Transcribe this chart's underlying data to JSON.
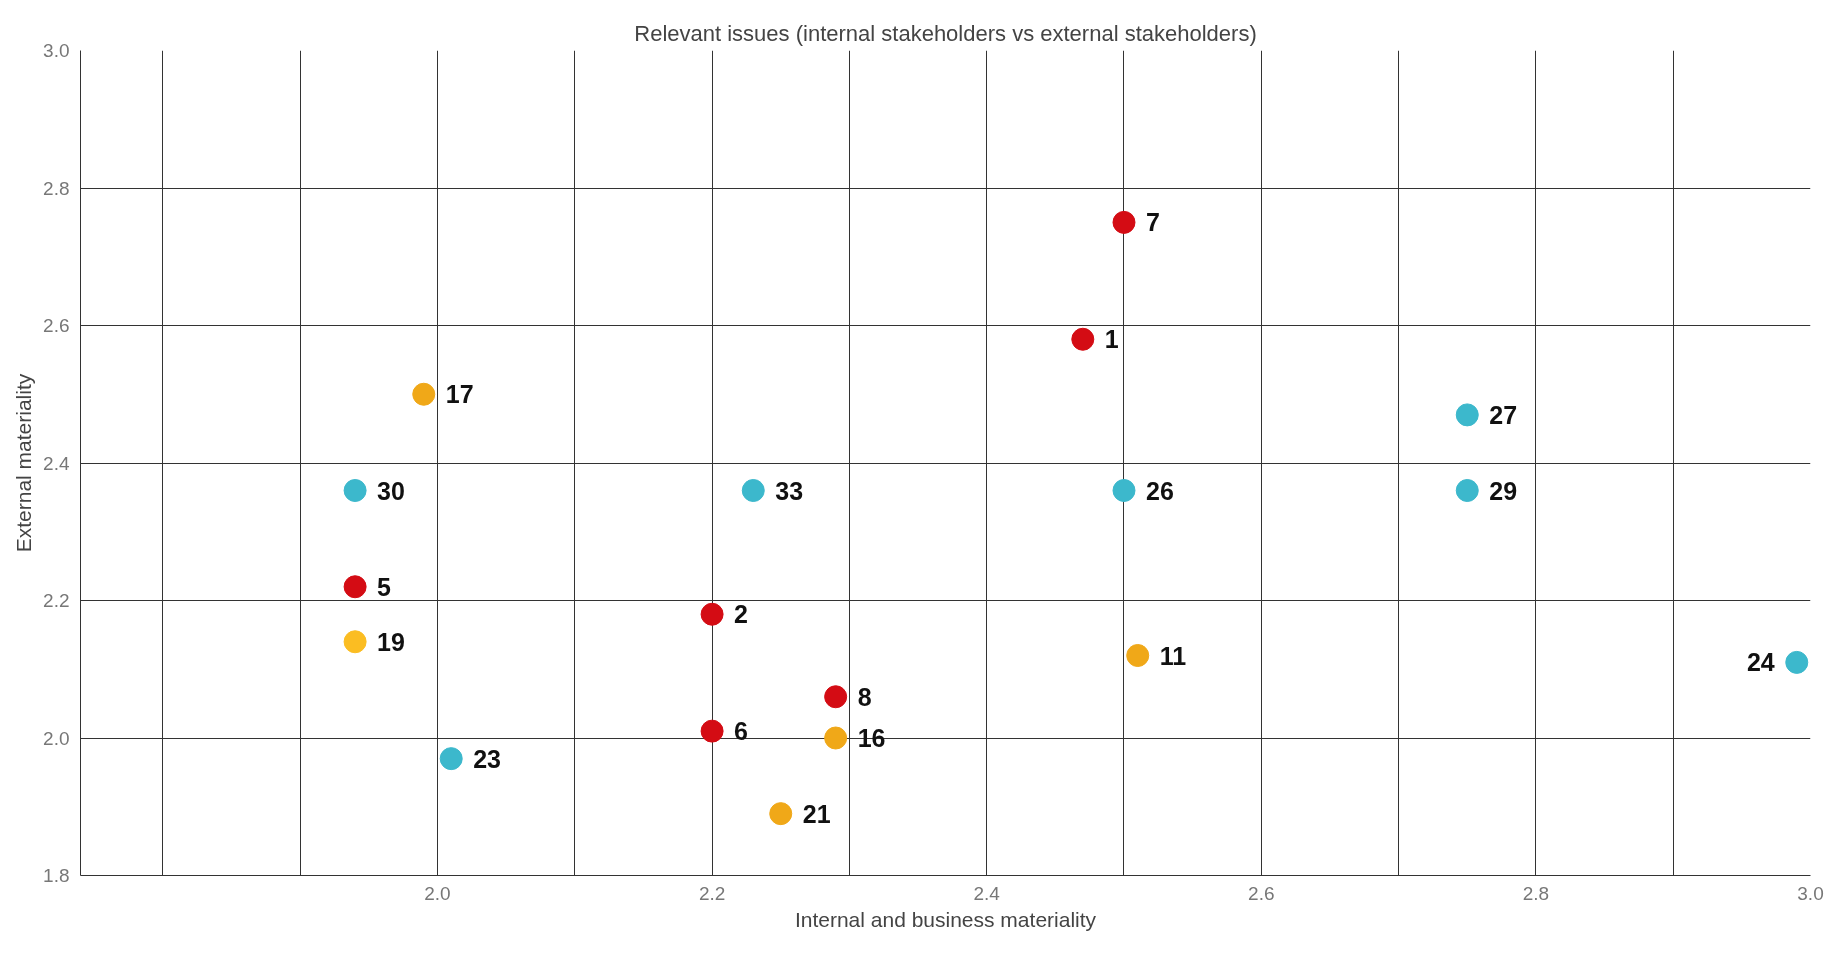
{
  "chart_data": {
    "type": "scatter",
    "title": "Relevant issues (internal stakeholders vs external stakeholders)",
    "xlabel": "Internal and business materiality",
    "ylabel": "External materiality",
    "x": [
      1.99,
      2.5,
      2.47,
      2.75,
      1.94,
      2.23,
      1.94,
      1.94,
      2.2,
      2.29,
      2.2,
      2.29,
      2.01,
      2.25,
      2.5,
      2.75,
      2.51,
      2.99
    ],
    "values": [
      2.5,
      2.75,
      2.58,
      2.47,
      2.36,
      2.36,
      2.22,
      2.14,
      2.18,
      2.06,
      2.01,
      2.0,
      1.97,
      1.89,
      2.36,
      2.36,
      2.12,
      2.11
    ],
    "colors": [
      "#f0a818",
      "#d40c14",
      "#d40c14",
      "#3cb8cc",
      "#3cb8cc",
      "#3cb8cc",
      "#d40c14",
      "#fbbd22",
      "#d40c14",
      "#d40c14",
      "#d40c14",
      "#f0a818",
      "#3cb8cc",
      "#f0a818",
      "#3cb8cc",
      "#3cb8cc",
      "#f0a818",
      "#3cb8cc"
    ],
    "annotations": [
      {
        "text": "17",
        "x": 1.99,
        "y": 2.5
      },
      {
        "text": "7",
        "x": 2.5,
        "y": 2.75
      },
      {
        "text": "1",
        "x": 2.47,
        "y": 2.58
      },
      {
        "text": "27",
        "x": 2.75,
        "y": 2.47
      },
      {
        "text": "30",
        "x": 1.94,
        "y": 2.36
      },
      {
        "text": "33",
        "x": 2.23,
        "y": 2.36
      },
      {
        "text": "5",
        "x": 1.94,
        "y": 2.22
      },
      {
        "text": "19",
        "x": 1.94,
        "y": 2.14
      },
      {
        "text": "2",
        "x": 2.2,
        "y": 2.18
      },
      {
        "text": "8",
        "x": 2.29,
        "y": 2.06
      },
      {
        "text": "6",
        "x": 2.2,
        "y": 2.01
      },
      {
        "text": "16",
        "x": 2.29,
        "y": 2.0
      },
      {
        "text": "23",
        "x": 2.01,
        "y": 1.97
      },
      {
        "text": "21",
        "x": 2.25,
        "y": 1.89
      },
      {
        "text": "26",
        "x": 2.5,
        "y": 2.36
      },
      {
        "text": "29",
        "x": 2.75,
        "y": 2.36
      },
      {
        "text": "11",
        "x": 2.51,
        "y": 2.12
      },
      {
        "text": "24",
        "x": 2.99,
        "y": 2.11
      }
    ],
    "xlim": [
      1.74,
      3.0
    ],
    "ylim": [
      1.8,
      3.0
    ],
    "xticks": [
      {
        "value": 1.8,
        "label": null
      },
      {
        "value": 1.9,
        "label": null
      },
      {
        "value": 2.0,
        "label": "2.0"
      },
      {
        "value": 2.1,
        "label": null
      },
      {
        "value": 2.2,
        "label": "2.2"
      },
      {
        "value": 2.3,
        "label": null
      },
      {
        "value": 2.4,
        "label": "2.4"
      },
      {
        "value": 2.5,
        "label": null
      },
      {
        "value": 2.6,
        "label": "2.6"
      },
      {
        "value": 2.7,
        "label": null
      },
      {
        "value": 2.8,
        "label": "2.8"
      },
      {
        "value": 2.9,
        "label": null
      },
      {
        "value": 3.0,
        "label": "3.0"
      }
    ],
    "yticks": [
      {
        "value": 1.8,
        "label": "1.8"
      },
      {
        "value": 2.0,
        "label": "2.0"
      },
      {
        "value": 2.2,
        "label": "2.2"
      },
      {
        "value": 2.4,
        "label": "2.4"
      },
      {
        "value": 2.6,
        "label": "2.6"
      },
      {
        "value": 2.8,
        "label": "2.8"
      },
      {
        "value": 3.0,
        "label": "3.0"
      }
    ],
    "grid": true,
    "marker": "circle"
  }
}
